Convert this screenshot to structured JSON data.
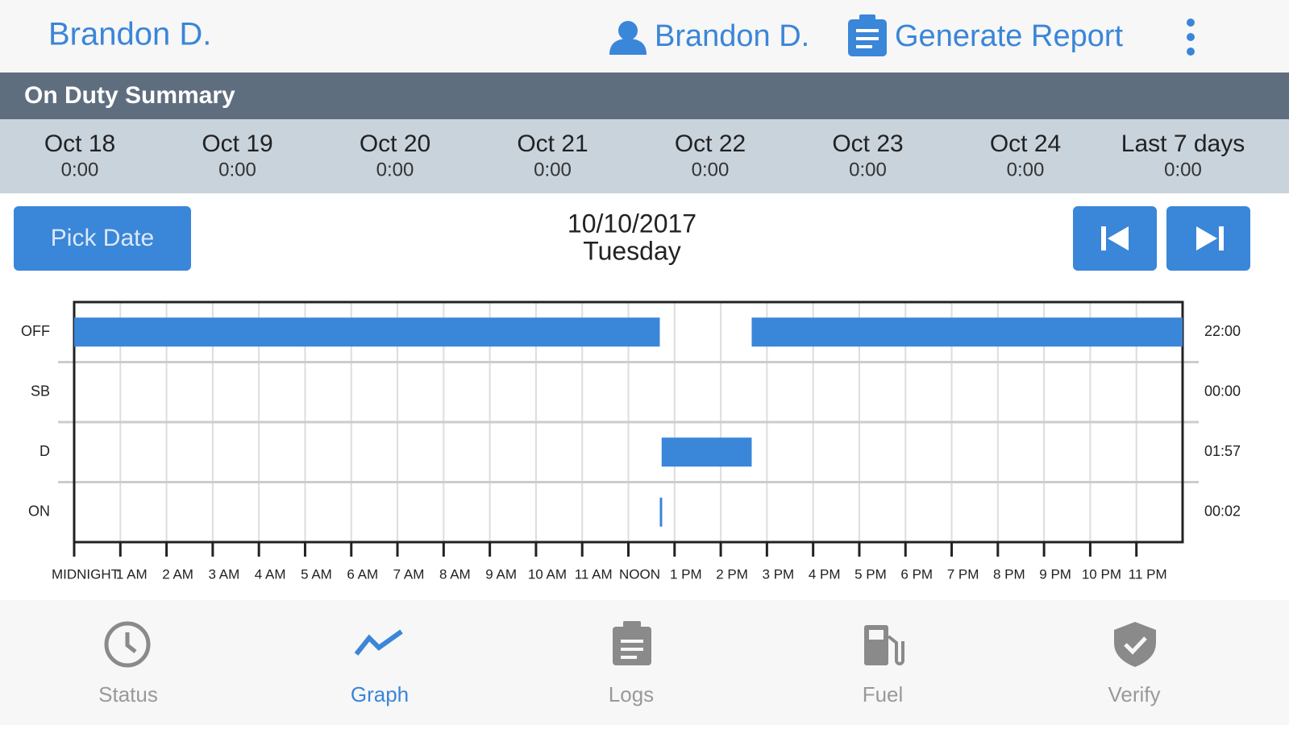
{
  "header": {
    "title": "Brandon D.",
    "user": "Brandon D.",
    "report": "Generate Report"
  },
  "summary": {
    "title": "On Duty Summary",
    "days": [
      {
        "label": "Oct 18",
        "value": "0:00"
      },
      {
        "label": "Oct 19",
        "value": "0:00"
      },
      {
        "label": "Oct 20",
        "value": "0:00"
      },
      {
        "label": "Oct 21",
        "value": "0:00"
      },
      {
        "label": "Oct 22",
        "value": "0:00"
      },
      {
        "label": "Oct 23",
        "value": "0:00"
      },
      {
        "label": "Oct 24",
        "value": "0:00"
      },
      {
        "label": "Last 7 days",
        "value": "0:00"
      }
    ]
  },
  "date": {
    "button": "Pick Date",
    "date": "10/10/2017",
    "weekday": "Tuesday"
  },
  "chart_data": {
    "type": "duty-graph",
    "categories": [
      "OFF",
      "SB",
      "D",
      "ON"
    ],
    "totals": [
      "22:00",
      "00:00",
      "01:57",
      "00:02"
    ],
    "values": [
      [
        [
          0,
          12.68
        ],
        [
          14.67,
          24
        ]
      ],
      [],
      [
        [
          12.72,
          14.67
        ]
      ],
      [
        [
          12.68,
          12.72
        ]
      ]
    ],
    "color": "#3a86d8",
    "xlim": [
      0,
      24
    ],
    "xticks": [
      {
        "value": 0,
        "label": "MIDNIGHT"
      },
      {
        "value": 1,
        "label": "1 AM"
      },
      {
        "value": 2,
        "label": "2 AM"
      },
      {
        "value": 3,
        "label": "3 AM"
      },
      {
        "value": 4,
        "label": "4 AM"
      },
      {
        "value": 5,
        "label": "5 AM"
      },
      {
        "value": 6,
        "label": "6 AM"
      },
      {
        "value": 7,
        "label": "7 AM"
      },
      {
        "value": 8,
        "label": "8 AM"
      },
      {
        "value": 9,
        "label": "9 AM"
      },
      {
        "value": 10,
        "label": "10 AM"
      },
      {
        "value": 11,
        "label": "11 AM"
      },
      {
        "value": 12,
        "label": "NOON"
      },
      {
        "value": 13,
        "label": "1 PM"
      },
      {
        "value": 14,
        "label": "2 PM"
      },
      {
        "value": 15,
        "label": "3 PM"
      },
      {
        "value": 16,
        "label": "4 PM"
      },
      {
        "value": 17,
        "label": "5 PM"
      },
      {
        "value": 18,
        "label": "6 PM"
      },
      {
        "value": 19,
        "label": "7 PM"
      },
      {
        "value": 20,
        "label": "8 PM"
      },
      {
        "value": 21,
        "label": "9 PM"
      },
      {
        "value": 22,
        "label": "10 PM"
      },
      {
        "value": 23,
        "label": "11 PM"
      }
    ],
    "grid": true
  },
  "nav": {
    "items": [
      "Status",
      "Graph",
      "Logs",
      "Fuel",
      "Verify"
    ]
  }
}
